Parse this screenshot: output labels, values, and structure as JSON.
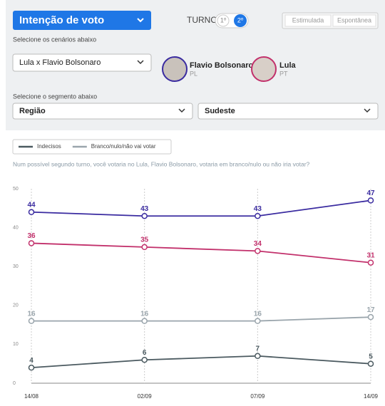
{
  "ui": {
    "title": "Intenção de voto",
    "turno_label": "TURNO",
    "turno_options": [
      "1º",
      "2º"
    ],
    "modes": [
      "Estimulada",
      "Espontânea"
    ],
    "scenario_prompt": "Selecione os cenários abaixo",
    "scenario": "Lula x Flavio Bolsonaro",
    "segment_prompt": "Selecione o segmento abaixo",
    "segment": "Região",
    "segment_value": "Sudeste"
  },
  "chart_data": {
    "type": "line",
    "title": "Num possível segundo turno, você votaria no Lula, Flavio Bolsonaro, votaria em branco/nulo ou não iria votar?",
    "categories": [
      "14/08",
      "02/09",
      "07/09",
      "14/09"
    ],
    "series": [
      {
        "name": "Flavio Bolsonaro",
        "party": "PL",
        "color": "#3a2ba0",
        "values": [
          44,
          43,
          43,
          47
        ]
      },
      {
        "name": "Lula",
        "party": "PT",
        "color": "#c2306b",
        "values": [
          36,
          35,
          34,
          31
        ]
      },
      {
        "name": "Branco/nulo/não vai votar",
        "color": "#9aa5ac",
        "values": [
          16,
          16,
          16,
          17
        ]
      },
      {
        "name": "Indecisos",
        "color": "#4b5a60",
        "values": [
          4,
          6,
          7,
          5
        ]
      }
    ],
    "ylim": [
      0,
      50
    ],
    "yticks": [
      0,
      10,
      20,
      30,
      40,
      50
    ],
    "grid": true
  }
}
